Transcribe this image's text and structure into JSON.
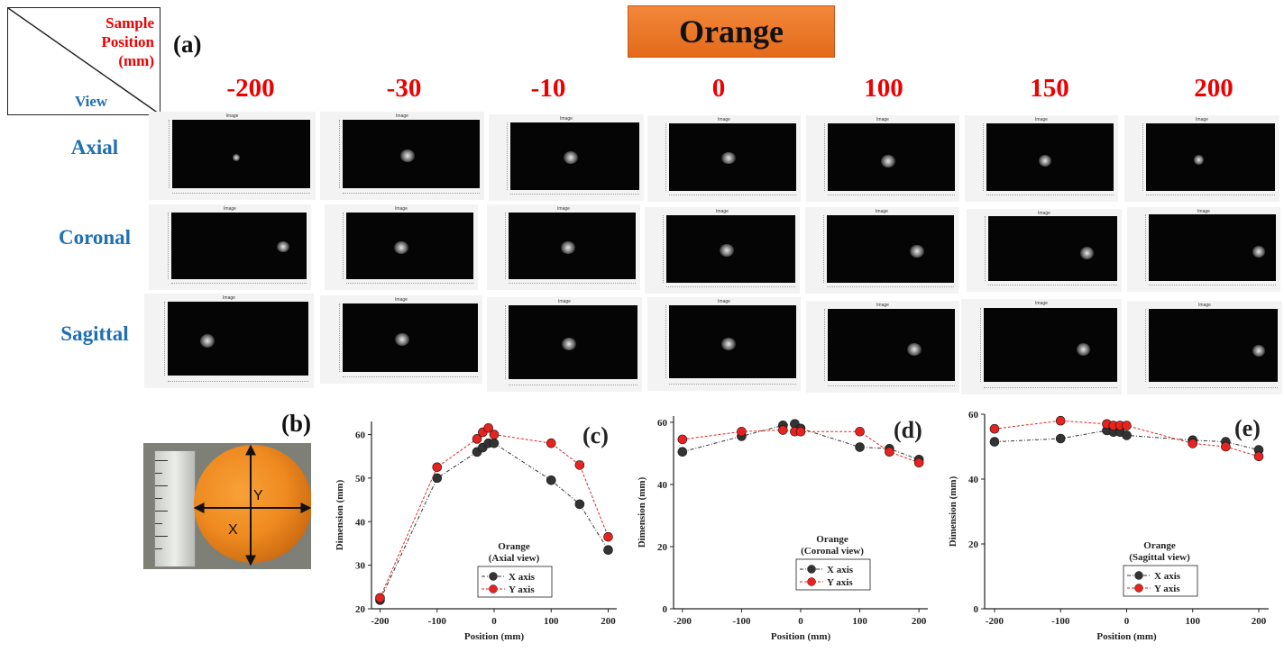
{
  "header": {
    "title": "Orange",
    "panel_a": "(a)",
    "panel_b": "(b)"
  },
  "corner": {
    "position_line1": "Sample",
    "position_line2": "Position",
    "position_line3": "(mm)",
    "view": "View"
  },
  "positions": [
    "-200",
    "-30",
    "-10",
    "0",
    "100",
    "150",
    "200"
  ],
  "views": [
    "Axial",
    "Coronal",
    "Sagittal"
  ],
  "thumb_caption": "Image",
  "photo": {
    "y_label": "Y",
    "x_label": "X"
  },
  "colors": {
    "title_bg": "#e97524",
    "position_text": "#ee0000",
    "view_text": "#1f6fb5",
    "x_series": "#333333",
    "y_series": "#e8231f"
  },
  "chart_data": [
    {
      "type": "line",
      "panel": "(c)",
      "title": "Orange",
      "subtitle": "(Axial view)",
      "xlabel": "Position (mm)",
      "ylabel": "Dimension (mm)",
      "xlim": [
        -215,
        215
      ],
      "ylim": [
        20,
        63
      ],
      "xticks": [
        -200,
        -100,
        0,
        100,
        200
      ],
      "yticks": [
        20,
        30,
        40,
        50,
        60
      ],
      "x": [
        -200,
        -100,
        -30,
        -20,
        -10,
        0,
        100,
        150,
        200
      ],
      "series": [
        {
          "name": "X axis",
          "values": [
            22,
            50,
            56,
            57,
            58,
            58,
            49.5,
            44,
            33.5
          ]
        },
        {
          "name": "Y axis",
          "values": [
            22.5,
            52.5,
            59,
            60.5,
            61.5,
            60,
            58,
            53,
            36.5
          ]
        }
      ],
      "legend": "bottom-right"
    },
    {
      "type": "line",
      "panel": "(d)",
      "title": "Orange",
      "subtitle": "(Coronal view)",
      "xlabel": "Position (mm)",
      "ylabel": "Dimension (mm)",
      "xlim": [
        -215,
        215
      ],
      "ylim": [
        0,
        62
      ],
      "xticks": [
        -200,
        -100,
        0,
        100,
        200
      ],
      "yticks": [
        0,
        20,
        40,
        60
      ],
      "x": [
        -200,
        -100,
        -30,
        -10,
        0,
        100,
        150,
        200
      ],
      "series": [
        {
          "name": "X axis",
          "values": [
            50.5,
            55.5,
            59,
            59.5,
            58,
            52,
            51.5,
            48
          ]
        },
        {
          "name": "Y axis",
          "values": [
            54.5,
            57,
            57.5,
            57,
            57,
            57,
            50.5,
            47
          ]
        }
      ],
      "legend": "bottom-right"
    },
    {
      "type": "line",
      "panel": "(e)",
      "title": "Orange",
      "subtitle": "(Sagittal view)",
      "xlabel": "Position (mm)",
      "ylabel": "Dimension (mm)",
      "xlim": [
        -215,
        215
      ],
      "ylim": [
        0,
        60
      ],
      "xticks": [
        -200,
        -100,
        0,
        100,
        200
      ],
      "yticks": [
        0,
        20,
        40,
        60
      ],
      "x": [
        -200,
        -100,
        -30,
        -20,
        -10,
        0,
        100,
        150,
        200
      ],
      "series": [
        {
          "name": "X axis",
          "values": [
            51.5,
            52.5,
            55,
            54.5,
            54.5,
            53.5,
            52,
            51.5,
            49
          ]
        },
        {
          "name": "Y axis",
          "values": [
            55.5,
            58,
            57,
            56.5,
            56.5,
            56.5,
            51,
            50,
            47
          ]
        }
      ],
      "legend": "bottom-right"
    }
  ]
}
